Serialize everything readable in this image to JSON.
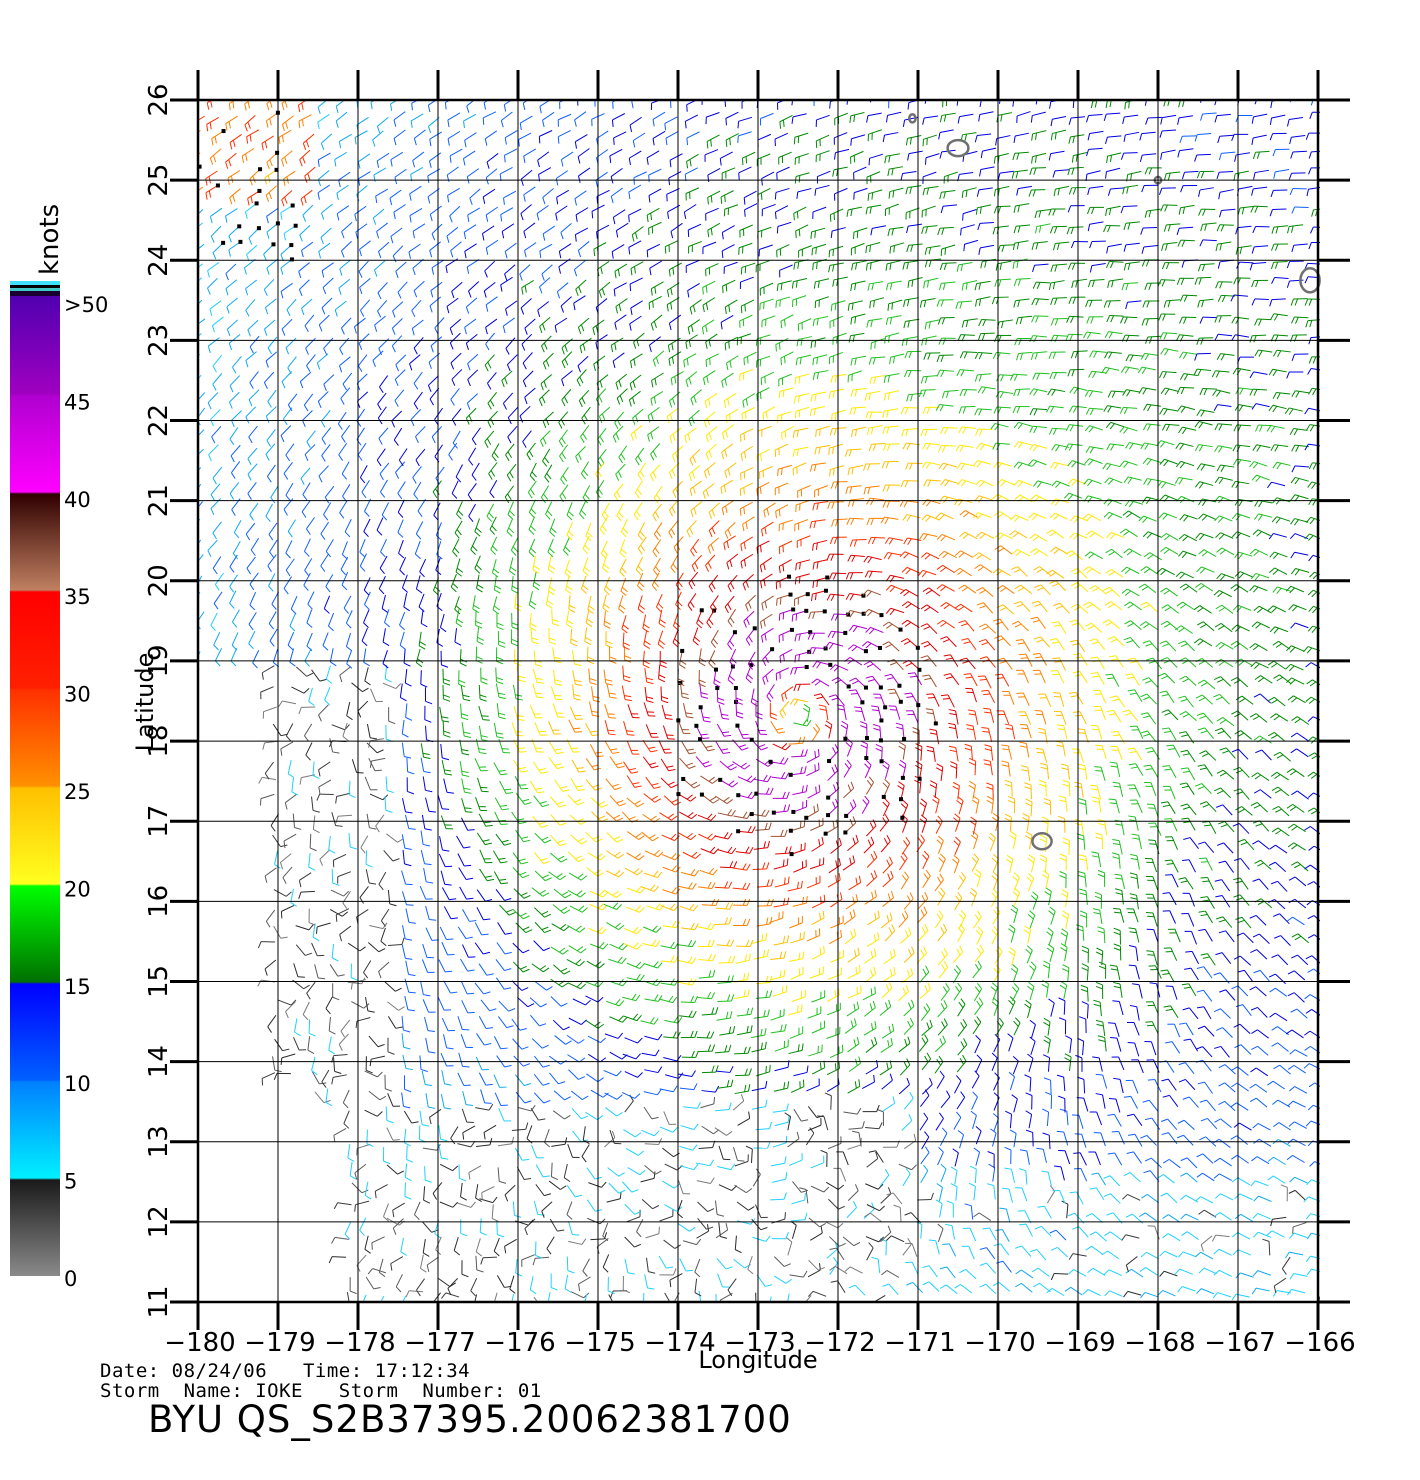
{
  "colorbar": {
    "title": "knots",
    "labels": [
      ">50",
      "45",
      "40",
      "35",
      "30",
      "25",
      "20",
      "15",
      "10",
      "5",
      "0"
    ],
    "colors": {
      "0-5": [
        "#8a8a8a",
        "#1a1a1a"
      ],
      "5-10": [
        "#00f0ff",
        "#0080ff"
      ],
      "10-15": [
        "#0060ff",
        "#0000ff"
      ],
      "15-20": [
        "#007000",
        "#00ff00"
      ],
      "20-25": [
        "#ffff20",
        "#ffc000"
      ],
      "25-30": [
        "#ff9000",
        "#ff3000"
      ],
      "30-35": [
        "#ff2000",
        "#ff0000"
      ],
      "35-40": [
        "#c08060",
        "#300000"
      ],
      "40-45": [
        "#ff00ff",
        "#b000d0"
      ],
      "45-50": [
        "#a000c0",
        "#6000c0"
      ],
      ">50": [
        "#40e0ff",
        "#000000"
      ]
    }
  },
  "axes": {
    "xlabel": "Longitude",
    "ylabel": "Latitude",
    "x_ticks": [
      "−180",
      "−179",
      "−178",
      "−177",
      "−176",
      "−175",
      "−174",
      "−173",
      "−172",
      "−171",
      "−170",
      "−169",
      "−168",
      "−167",
      "−166"
    ],
    "y_ticks": [
      "11",
      "12",
      "13",
      "14",
      "15",
      "16",
      "17",
      "18",
      "19",
      "20",
      "21",
      "22",
      "23",
      "24",
      "25",
      "26"
    ],
    "lon_range": [
      -180,
      -166
    ],
    "lat_range": [
      11,
      26
    ],
    "grid": true
  },
  "footer": {
    "date_line": "Date: 08/24/06   Time: 17:12:34",
    "storm_line": "Storm  Name: IOKE   Storm  Number: 01",
    "product_id": "BYU  QS_S2B37395.20062381700"
  },
  "storm": {
    "center_lon": -172.5,
    "center_lat": 18.3
  },
  "islands": [
    {
      "lon": -171.07,
      "lat": 25.77,
      "rx": 0.04,
      "ry": 0.05
    },
    {
      "lon": -170.5,
      "lat": 25.4,
      "rx": 0.13,
      "ry": 0.1
    },
    {
      "lon": -168.0,
      "lat": 25.0,
      "rx": 0.04,
      "ry": 0.04
    },
    {
      "lon": -166.1,
      "lat": 23.75,
      "rx": 0.12,
      "ry": 0.15
    },
    {
      "lon": -169.45,
      "lat": 16.75,
      "rx": 0.12,
      "ry": 0.1
    }
  ]
}
